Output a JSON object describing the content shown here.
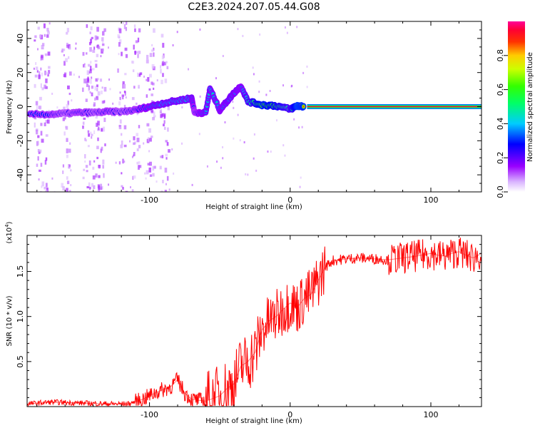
{
  "figure": {
    "title": "C2E3.2024.207.05.44.G08"
  },
  "chart_data": [
    {
      "type": "heatmap",
      "xlabel": "Height of straight line (km)",
      "ylabel": "Frequency (Hz)",
      "xlim": [
        -187,
        136
      ],
      "ylim": [
        -50,
        50
      ],
      "x_ticks": [
        -100,
        0,
        100
      ],
      "x_tick_labels": [
        "-100",
        "0",
        "100"
      ],
      "y_ticks": [
        -40,
        -20,
        0,
        20,
        40
      ],
      "y_tick_labels": [
        "-40",
        "-20",
        "0",
        "20",
        "40"
      ],
      "colorbar": {
        "label": "Normalized spectral amplitude",
        "range": [
          0,
          1
        ],
        "ticks": [
          0,
          0.2,
          0.4,
          0.6,
          0.8
        ],
        "tick_labels": [
          "0.0",
          "0.2",
          "0.4",
          "0.6",
          "0.8"
        ],
        "colormap": "rainbow (white-purple-blue-cyan-green-yellow-red-magenta)"
      },
      "ridge": [
        {
          "x": -185,
          "y": -4.5,
          "amp": 0.35
        },
        {
          "x": -170,
          "y": -4.5,
          "amp": 0.35
        },
        {
          "x": -160,
          "y": -4.0,
          "amp": 0.3
        },
        {
          "x": -150,
          "y": -3.5,
          "amp": 0.35
        },
        {
          "x": -140,
          "y": -3.5,
          "amp": 0.3
        },
        {
          "x": -130,
          "y": -3.0,
          "amp": 0.35
        },
        {
          "x": -120,
          "y": -3.0,
          "amp": 0.3
        },
        {
          "x": -110,
          "y": -2.0,
          "amp": 0.35
        },
        {
          "x": -100,
          "y": 0.0,
          "amp": 0.45
        },
        {
          "x": -90,
          "y": 2.0,
          "amp": 0.5
        },
        {
          "x": -80,
          "y": 3.5,
          "amp": 0.5
        },
        {
          "x": -70,
          "y": 5.0,
          "amp": 0.5
        },
        {
          "x": -68,
          "y": -3.5,
          "amp": 0.35
        },
        {
          "x": -60,
          "y": -3.5,
          "amp": 0.5
        },
        {
          "x": -57,
          "y": 10.5,
          "amp": 0.5
        },
        {
          "x": -50,
          "y": -2.0,
          "amp": 0.45
        },
        {
          "x": -45,
          "y": 3.0,
          "amp": 0.5
        },
        {
          "x": -40,
          "y": 8.0,
          "amp": 0.5
        },
        {
          "x": -35,
          "y": 12.0,
          "amp": 0.45
        },
        {
          "x": -30,
          "y": 3.0,
          "amp": 0.6
        },
        {
          "x": -20,
          "y": 1.0,
          "amp": 0.85
        },
        {
          "x": -10,
          "y": 0.5,
          "amp": 0.75
        },
        {
          "x": 0,
          "y": -1.5,
          "amp": 0.6
        },
        {
          "x": 5,
          "y": 0.5,
          "amp": 0.9
        },
        {
          "x": 10,
          "y": 0.0,
          "amp": 0.85
        }
      ],
      "steady_line": {
        "x_start": 12,
        "x_end": 136,
        "y": 0,
        "amp": 0.95
      }
    },
    {
      "type": "line",
      "xlabel": "Height of straight line (km)",
      "ylabel": "SNR (10 * v/v)",
      "y_scale_label": "(x10",
      "y_scale_exponent": "4",
      "xlim": [
        -187,
        136
      ],
      "ylim": [
        0,
        19000
      ],
      "x_ticks": [
        -100,
        0,
        100
      ],
      "x_tick_labels": [
        "-100",
        "0",
        "100"
      ],
      "y_ticks": [
        5000,
        10000,
        15000
      ],
      "y_tick_labels": [
        "0.5",
        "1.0",
        "1.5"
      ],
      "color": "#ff0000",
      "series": [
        {
          "x": [
            -187,
            -170,
            -150,
            -130,
            -115,
            -105,
            -95,
            -85,
            -80,
            -75,
            -70,
            -60,
            -50,
            -45,
            -40,
            -35,
            -30,
            -25,
            -20,
            -15,
            -10,
            -5,
            0,
            5,
            10,
            15,
            20,
            25,
            30,
            35,
            40,
            50,
            60,
            70,
            80,
            90,
            100,
            105,
            110,
            115,
            120,
            125,
            130,
            136
          ],
          "y": [
            300,
            500,
            400,
            300,
            300,
            800,
            1600,
            2200,
            3000,
            1500,
            800,
            600,
            1200,
            2000,
            2500,
            4500,
            5000,
            6000,
            8500,
            9500,
            10000,
            10800,
            11500,
            11000,
            12000,
            12500,
            14000,
            15500,
            16200,
            16300,
            16400,
            16500,
            16400,
            16300,
            16500,
            16700,
            17000,
            16800,
            16700,
            17000,
            17200,
            16800,
            16500,
            17000
          ]
        }
      ]
    }
  ]
}
